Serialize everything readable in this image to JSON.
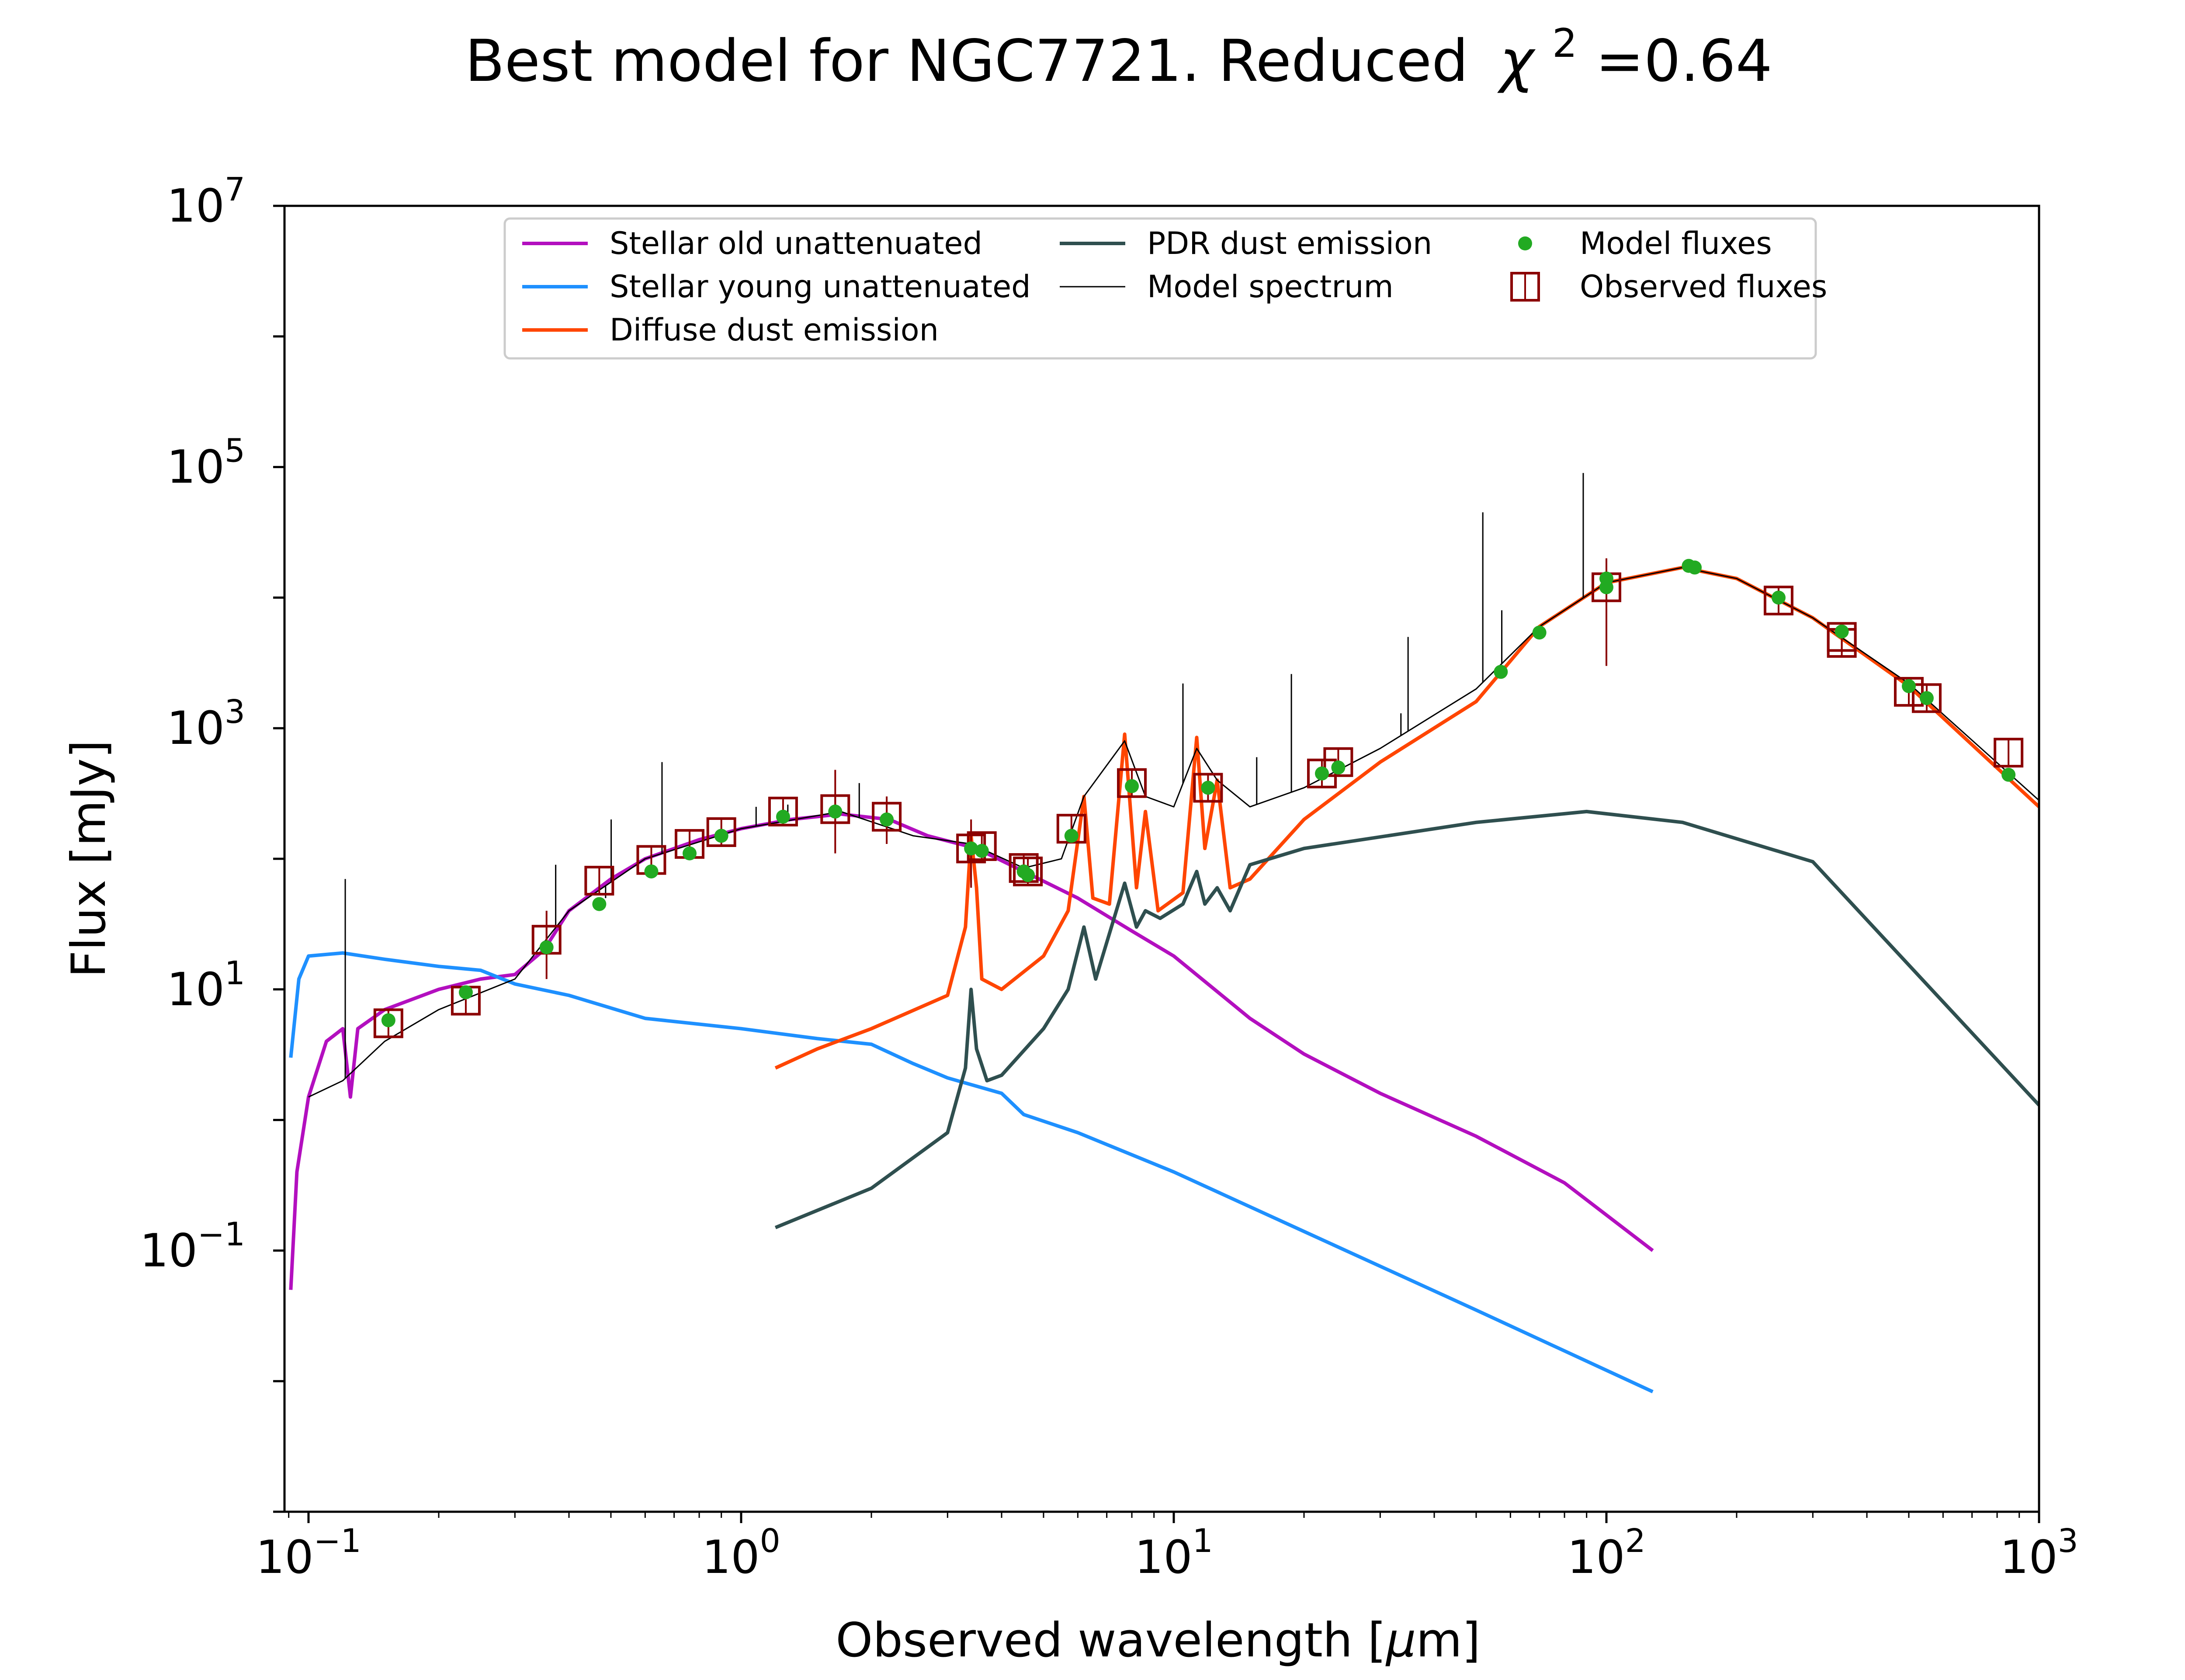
{
  "chart_data": {
    "type": "line",
    "title": "Best model for NGC7721. Reduced",
    "title_chi": "χ",
    "title_chi_exp": "2",
    "title_chi_value": "=0.64",
    "xlabel_main": "Observed wavelength [",
    "xlabel_mu": "μ",
    "xlabel_unit": "m]",
    "ylabel": "Flux [mJy]",
    "xscale": "log",
    "yscale": "log",
    "xlim": [
      0.088,
      1000
    ],
    "ylim": [
      0.001,
      10000000
    ],
    "grid": false,
    "legend_position": "top-center",
    "x_ticks": [
      {
        "base": "10",
        "exp": "−1",
        "value": 0.1
      },
      {
        "base": "10",
        "exp": "0",
        "value": 1
      },
      {
        "base": "10",
        "exp": "1",
        "value": 10
      },
      {
        "base": "10",
        "exp": "2",
        "value": 100
      },
      {
        "base": "10",
        "exp": "3",
        "value": 1000
      }
    ],
    "y_ticks": [
      {
        "base": "10",
        "exp": "7",
        "value": 10000000
      },
      {
        "base": "10",
        "exp": "5",
        "value": 100000
      },
      {
        "base": "10",
        "exp": "3",
        "value": 1000
      },
      {
        "base": "10",
        "exp": "1",
        "value": 10
      },
      {
        "base": "10",
        "exp": "−1",
        "value": 0.1
      }
    ],
    "legend": [
      {
        "label": "Stellar old unattenuated",
        "color": "#b30fbf",
        "kind": "line"
      },
      {
        "label": "Stellar young unattenuated",
        "color": "#1e90ff",
        "kind": "line"
      },
      {
        "label": "Diffuse dust emission",
        "color": "#ff4500",
        "kind": "line"
      },
      {
        "label": "PDR dust emission",
        "color": "#2f4f4f",
        "kind": "line"
      },
      {
        "label": "Model spectrum",
        "color": "#000000",
        "kind": "thinline"
      },
      {
        "label": "Model fluxes",
        "color": "#22aa22",
        "kind": "dot"
      },
      {
        "label": "Observed fluxes",
        "color": "#8b0000",
        "kind": "square"
      }
    ],
    "series": [
      {
        "name": "Stellar old unattenuated",
        "color": "#b30fbf",
        "points": [
          [
            0.091,
            0.05
          ],
          [
            0.094,
            0.4
          ],
          [
            0.1,
            1.5
          ],
          [
            0.11,
            4
          ],
          [
            0.12,
            5
          ],
          [
            0.125,
            1.5
          ],
          [
            0.13,
            5
          ],
          [
            0.15,
            7
          ],
          [
            0.2,
            10
          ],
          [
            0.25,
            12
          ],
          [
            0.3,
            13
          ],
          [
            0.35,
            20
          ],
          [
            0.4,
            40
          ],
          [
            0.5,
            70
          ],
          [
            0.6,
            100
          ],
          [
            0.8,
            140
          ],
          [
            1.0,
            170
          ],
          [
            1.3,
            200
          ],
          [
            1.7,
            220
          ],
          [
            2.2,
            200
          ],
          [
            2.7,
            150
          ],
          [
            3.5,
            120
          ],
          [
            4.5,
            80
          ],
          [
            6,
            50
          ],
          [
            8,
            28
          ],
          [
            10,
            18
          ],
          [
            15,
            6
          ],
          [
            20,
            3.2
          ],
          [
            30,
            1.6
          ],
          [
            50,
            0.75
          ],
          [
            80,
            0.33
          ],
          [
            128,
            0.1
          ]
        ]
      },
      {
        "name": "Stellar young unattenuated",
        "color": "#1e90ff",
        "points": [
          [
            0.091,
            3
          ],
          [
            0.095,
            12
          ],
          [
            0.1,
            18
          ],
          [
            0.12,
            19
          ],
          [
            0.15,
            17
          ],
          [
            0.2,
            15
          ],
          [
            0.25,
            14
          ],
          [
            0.3,
            11
          ],
          [
            0.4,
            9
          ],
          [
            0.6,
            6
          ],
          [
            1.0,
            5
          ],
          [
            1.5,
            4.2
          ],
          [
            2.0,
            3.8
          ],
          [
            2.5,
            2.7
          ],
          [
            3.0,
            2.1
          ],
          [
            4.0,
            1.6
          ],
          [
            4.5,
            1.1
          ],
          [
            6,
            0.8
          ],
          [
            10,
            0.4
          ],
          [
            20,
            0.14
          ],
          [
            50,
            0.035
          ],
          [
            128,
            0.0083
          ]
        ]
      },
      {
        "name": "Diffuse dust emission",
        "color": "#ff4500",
        "points": [
          [
            1.2,
            2.5
          ],
          [
            1.5,
            3.5
          ],
          [
            2,
            5
          ],
          [
            3,
            9
          ],
          [
            3.3,
            30
          ],
          [
            3.4,
            150
          ],
          [
            3.5,
            60
          ],
          [
            3.6,
            12
          ],
          [
            4,
            10
          ],
          [
            5,
            18
          ],
          [
            5.7,
            40
          ],
          [
            6.2,
            300
          ],
          [
            6.5,
            50
          ],
          [
            7.1,
            45
          ],
          [
            7.7,
            900
          ],
          [
            8.2,
            60
          ],
          [
            8.6,
            230
          ],
          [
            9.2,
            40
          ],
          [
            10.5,
            55
          ],
          [
            11.3,
            850
          ],
          [
            11.8,
            120
          ],
          [
            12.6,
            400
          ],
          [
            13.5,
            60
          ],
          [
            15,
            70
          ],
          [
            20,
            200
          ],
          [
            30,
            550
          ],
          [
            50,
            1600
          ],
          [
            70,
            6000
          ],
          [
            100,
            13000
          ],
          [
            150,
            17000
          ],
          [
            200,
            14000
          ],
          [
            300,
            7000
          ],
          [
            500,
            2100
          ],
          [
            1000,
            250
          ]
        ]
      },
      {
        "name": "PDR dust emission",
        "color": "#2f4f4f",
        "points": [
          [
            1.2,
            0.15
          ],
          [
            2,
            0.3
          ],
          [
            3,
            0.8
          ],
          [
            3.3,
            2.5
          ],
          [
            3.4,
            10
          ],
          [
            3.5,
            3.5
          ],
          [
            3.7,
            2
          ],
          [
            4,
            2.2
          ],
          [
            5,
            5
          ],
          [
            5.7,
            10
          ],
          [
            6.2,
            30
          ],
          [
            6.6,
            12
          ],
          [
            7.7,
            65
          ],
          [
            8.2,
            30
          ],
          [
            8.6,
            40
          ],
          [
            9.3,
            35
          ],
          [
            10.5,
            45
          ],
          [
            11.3,
            80
          ],
          [
            11.8,
            45
          ],
          [
            12.6,
            60
          ],
          [
            13.5,
            40
          ],
          [
            15,
            90
          ],
          [
            20,
            120
          ],
          [
            50,
            190
          ],
          [
            90,
            230
          ],
          [
            150,
            190
          ],
          [
            300,
            95
          ],
          [
            1000,
            1.3
          ]
        ]
      },
      {
        "name": "Model spectrum",
        "color": "#000000",
        "points": [
          [
            0.1,
            1.5
          ],
          [
            0.12,
            2
          ],
          [
            0.15,
            4
          ],
          [
            0.2,
            7
          ],
          [
            0.3,
            12
          ],
          [
            0.4,
            40
          ],
          [
            0.6,
            100
          ],
          [
            1.0,
            170
          ],
          [
            1.7,
            230
          ],
          [
            2.5,
            150
          ],
          [
            3.4,
            130
          ],
          [
            4.5,
            85
          ],
          [
            5.5,
            100
          ],
          [
            6.2,
            300
          ],
          [
            7.7,
            800
          ],
          [
            8.6,
            300
          ],
          [
            10,
            250
          ],
          [
            11.3,
            700
          ],
          [
            12.6,
            400
          ],
          [
            15,
            250
          ],
          [
            20,
            350
          ],
          [
            30,
            700
          ],
          [
            50,
            2000
          ],
          [
            70,
            6000
          ],
          [
            100,
            13000
          ],
          [
            150,
            17000
          ],
          [
            200,
            14000
          ],
          [
            300,
            7000
          ],
          [
            500,
            2200
          ],
          [
            1000,
            280
          ]
        ]
      }
    ],
    "spectral_lines": [
      {
        "x": 0.1216,
        "top": 70
      },
      {
        "x": 0.3727,
        "top": 90
      },
      {
        "x": 0.4861,
        "top": 50
      },
      {
        "x": 0.5007,
        "top": 200
      },
      {
        "x": 0.6563,
        "top": 550
      },
      {
        "x": 1.083,
        "top": 250
      },
      {
        "x": 1.282,
        "top": 260
      },
      {
        "x": 1.875,
        "top": 380
      },
      {
        "x": 2.17,
        "top": 230
      },
      {
        "x": 4.05,
        "top": 100
      },
      {
        "x": 10.5,
        "top": 2200
      },
      {
        "x": 15.55,
        "top": 600
      },
      {
        "x": 18.7,
        "top": 2600
      },
      {
        "x": 33.5,
        "top": 1300
      },
      {
        "x": 34.8,
        "top": 5000
      },
      {
        "x": 51.8,
        "top": 45000
      },
      {
        "x": 57.3,
        "top": 8000
      },
      {
        "x": 88.4,
        "top": 90000
      }
    ],
    "model_fluxes": [
      [
        0.153,
        5.8
      ],
      [
        0.231,
        9.5
      ],
      [
        0.355,
        21
      ],
      [
        0.47,
        45
      ],
      [
        0.62,
        80
      ],
      [
        0.76,
        110
      ],
      [
        0.9,
        150
      ],
      [
        1.25,
        210
      ],
      [
        1.65,
        230
      ],
      [
        2.17,
        200
      ],
      [
        3.4,
        120
      ],
      [
        3.6,
        115
      ],
      [
        4.5,
        80
      ],
      [
        4.6,
        75
      ],
      [
        5.8,
        150
      ],
      [
        8.0,
        360
      ],
      [
        12.0,
        350
      ],
      [
        22,
        450
      ],
      [
        24,
        500
      ],
      [
        57,
        2700
      ],
      [
        70,
        5400
      ],
      [
        100,
        12000
      ],
      [
        100,
        14000
      ],
      [
        155,
        17500
      ],
      [
        160,
        17000
      ],
      [
        250,
        10000
      ],
      [
        350,
        5500
      ],
      [
        500,
        2100
      ],
      [
        550,
        1700
      ],
      [
        850,
        440
      ]
    ],
    "observed_fluxes": [
      [
        0.153,
        5.5
      ],
      [
        0.231,
        8.2
      ],
      [
        0.355,
        24
      ],
      [
        0.47,
        68
      ],
      [
        0.62,
        98
      ],
      [
        0.76,
        130
      ],
      [
        0.9,
        160
      ],
      [
        1.25,
        230
      ],
      [
        1.65,
        240
      ],
      [
        2.17,
        210
      ],
      [
        3.4,
        120
      ],
      [
        3.6,
        125
      ],
      [
        4.5,
        85
      ],
      [
        4.6,
        80
      ],
      [
        5.8,
        170
      ],
      [
        8.0,
        380
      ],
      [
        12.0,
        350
      ],
      [
        22,
        450
      ],
      [
        24,
        550
      ],
      [
        100,
        12000
      ],
      [
        250,
        9500
      ],
      [
        350,
        5000
      ],
      [
        350,
        4500
      ],
      [
        500,
        1900
      ],
      [
        550,
        1700
      ],
      [
        850,
        650
      ]
    ],
    "observed_errors": [
      [
        0.355,
        12,
        40
      ],
      [
        1.65,
        110,
        480
      ],
      [
        2.17,
        130,
        300
      ],
      [
        3.4,
        60,
        200
      ],
      [
        100,
        3000,
        20000
      ]
    ]
  }
}
